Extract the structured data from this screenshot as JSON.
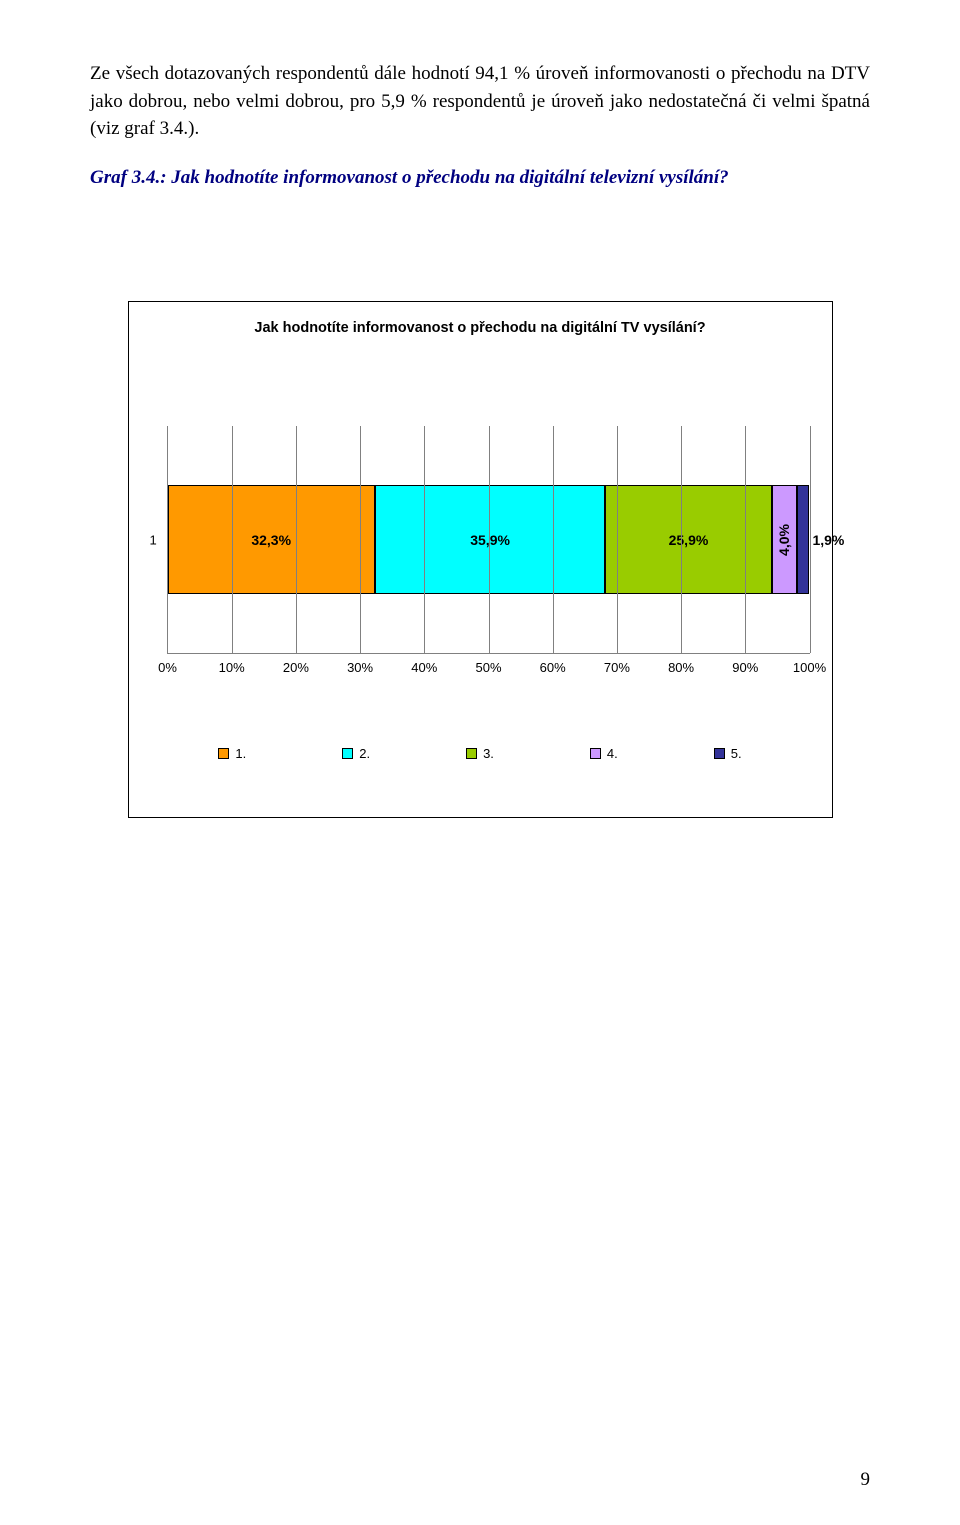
{
  "paragraph": "Ze všech dotazovaných respondentů dále hodnotí 94,1 % úroveň informovanosti o přechodu na DTV jako dobrou, nebo velmi dobrou, pro 5,9 % respondentů je úroveň jako nedostatečná či velmi špatná (viz graf 3.4.).",
  "graf_caption": "Graf 3.4.: Jak hodnotíte informovanost o přechodu na digitální televizní vysílání?",
  "chart": {
    "title": "Jak hodnotíte informovanost o přechodu na digitální TV vysílání?",
    "y_category": "1",
    "segments": [
      {
        "label": "32,3%",
        "value": 32.3,
        "color": "#ff9900"
      },
      {
        "label": "35,9%",
        "value": 35.9,
        "color": "#00ffff"
      },
      {
        "label": "25,9%",
        "value": 25.9,
        "color": "#99cc00"
      },
      {
        "label": "4,0%",
        "value": 4.0,
        "color": "#cc99ff",
        "rot": true
      },
      {
        "label": "1,9%",
        "value": 1.9,
        "color": "#333399",
        "outside": true
      }
    ],
    "legend": [
      {
        "label": "1.",
        "color": "#ff9900"
      },
      {
        "label": "2.",
        "color": "#00ffff"
      },
      {
        "label": "3.",
        "color": "#99cc00"
      },
      {
        "label": "4.",
        "color": "#cc99ff"
      },
      {
        "label": "5.",
        "color": "#333399"
      }
    ],
    "xticks": [
      "0%",
      "10%",
      "20%",
      "30%",
      "40%",
      "50%",
      "60%",
      "70%",
      "80%",
      "90%",
      "100%"
    ],
    "grid_color": "#808080",
    "border_color": "#000000",
    "background": "#ffffff"
  },
  "page_number": "9"
}
